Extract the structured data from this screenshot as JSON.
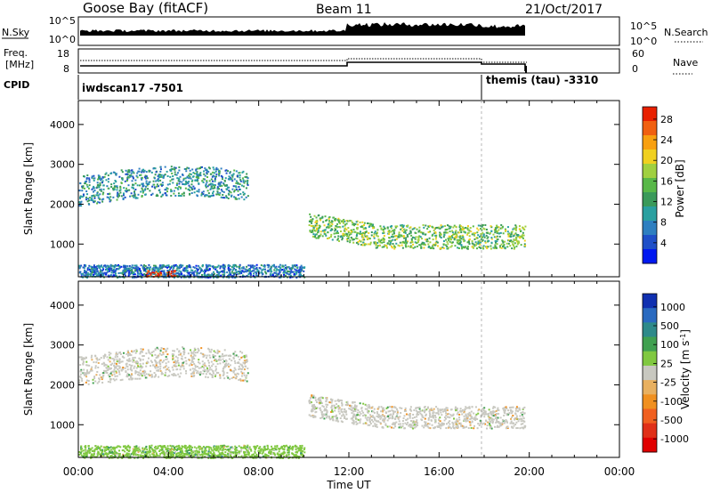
{
  "header": {
    "station": "Goose Bay (fitACF)",
    "beam": "Beam 11",
    "date": "21/Oct/2017"
  },
  "summary": {
    "nsky_label": "N.Sky",
    "nsky_ticks": [
      "10^5",
      "10^0"
    ],
    "nsearch_label": "N.Search",
    "freq_label_line1": "Freq.",
    "freq_label_line2": "[MHz]",
    "freq_ticks": [
      "18",
      "8"
    ],
    "nave_label": "Nave",
    "nave_ticks": [
      "60",
      "0"
    ],
    "cpid_label": "CPID",
    "cpid_entries": [
      {
        "text": "iwdscan17 -7501",
        "start_hour": 0
      },
      {
        "text": "themis (tau) -3310",
        "start_hour": 18
      }
    ]
  },
  "colors": {
    "power": [
      "#0018f0",
      "#1f4fc8",
      "#2e7fc0",
      "#2aa0a0",
      "#3a9a5a",
      "#58b848",
      "#a0d040",
      "#f0d020",
      "#f8a010",
      "#f06010",
      "#e82000"
    ],
    "velocity": [
      "#1030b0",
      "#2a6ac0",
      "#2e8a8a",
      "#40a050",
      "#80c840",
      "#c8c8c0",
      "#e8b060",
      "#f09020",
      "#f06020",
      "#e03018",
      "#e00000"
    ]
  },
  "chart_data": [
    {
      "type": "heatmap",
      "name": "power",
      "xlabel": "Time UT",
      "ylabel": "Slant Range [km]",
      "x_ticks": [
        "00:00",
        "04:00",
        "08:00",
        "12:00",
        "16:00",
        "20:00",
        "00:00"
      ],
      "y_ticks": [
        "1000",
        "2000",
        "3000",
        "4000"
      ],
      "xlim_hours": [
        0,
        24
      ],
      "ylim_km": [
        180,
        4600
      ],
      "colorbar_label": "Power [dB]",
      "colorbar_ticks": [
        "4",
        "8",
        "12",
        "16",
        "20",
        "24",
        "28"
      ],
      "scatter_bands": [
        {
          "t0": 0.0,
          "t1": 7.5,
          "r0": 2000,
          "r1": 2750,
          "level": 3
        },
        {
          "t0": 10.2,
          "t1": 19.8,
          "r0": 1150,
          "r1": 1750,
          "level": 5
        },
        {
          "t0": 0.0,
          "t1": 10.0,
          "r0": 180,
          "r1": 500,
          "level": 2
        },
        {
          "t0": 3.0,
          "t1": 4.3,
          "r0": 200,
          "r1": 350,
          "level": 10
        }
      ]
    },
    {
      "type": "heatmap",
      "name": "velocity",
      "xlabel": "Time UT",
      "ylabel": "Slant Range [km]",
      "x_ticks": [
        "00:00",
        "04:00",
        "08:00",
        "12:00",
        "16:00",
        "20:00",
        "00:00"
      ],
      "y_ticks": [
        "1000",
        "2000",
        "3000",
        "4000"
      ],
      "xlim_hours": [
        0,
        24
      ],
      "ylim_km": [
        180,
        4600
      ],
      "colorbar_label": "Velocity [m s",
      "colorbar_label_sup": "-1",
      "colorbar_label_end": "]",
      "colorbar_ticks": [
        "1000",
        "500",
        "100",
        "25",
        "-25",
        "-100",
        "-500",
        "-1000"
      ],
      "scatter_bands": [
        {
          "t0": 0.0,
          "t1": 7.5,
          "r0": 2000,
          "r1": 2750,
          "level": 5
        },
        {
          "t0": 10.2,
          "t1": 19.8,
          "r0": 1200,
          "r1": 1750,
          "level": 5
        },
        {
          "t0": 0.0,
          "t1": 10.0,
          "r0": 180,
          "r1": 500,
          "level": 4
        }
      ]
    }
  ]
}
